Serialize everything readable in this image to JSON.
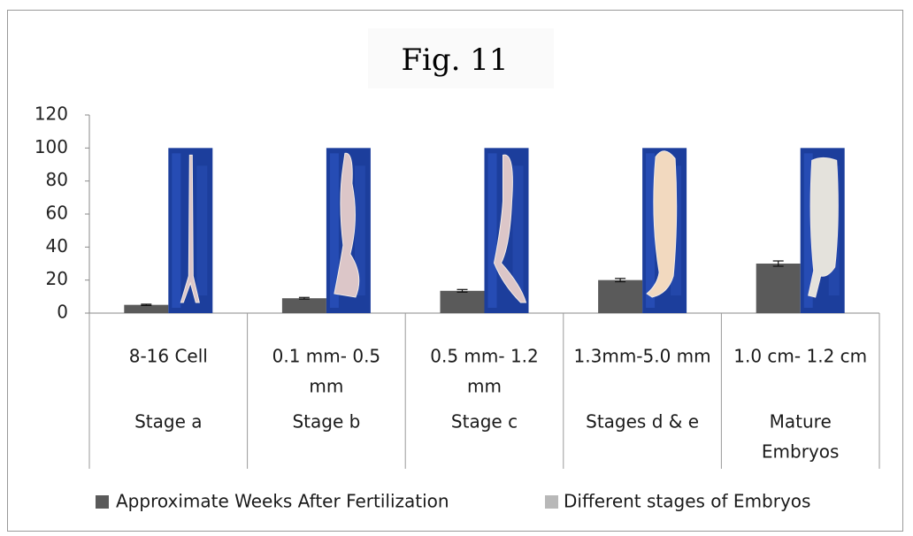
{
  "chart_data": {
    "type": "bar",
    "title": "Fig. 11",
    "ylim": [
      0,
      120
    ],
    "yticks": [
      0,
      20,
      40,
      60,
      80,
      100,
      120
    ],
    "grid": false,
    "legend_position": "bottom",
    "categories": [
      [
        "8-16 Cell"
      ],
      [
        "0.1 mm- 0.5",
        "mm"
      ],
      [
        "0.5 mm- 1.2",
        "mm"
      ],
      [
        "1.3mm-5.0 mm"
      ],
      [
        "1.0 cm- 1.2 cm"
      ]
    ],
    "groups": [
      [
        "Stage a"
      ],
      [
        "Stage b"
      ],
      [
        "Stage c"
      ],
      [
        "Stages  d & e"
      ],
      [
        "Mature",
        "Embryos"
      ]
    ],
    "series": [
      {
        "name": "Approximate Weeks After Fertilization",
        "color": "#5a5a5a",
        "values": [
          5,
          9,
          13.5,
          20,
          30
        ],
        "errors": [
          0.4,
          0.5,
          0.8,
          1.0,
          1.6
        ]
      },
      {
        "name": "Different stages of Embryos",
        "color": "#b8b8b8",
        "values": [
          100,
          100,
          100,
          100,
          100
        ]
      }
    ]
  }
}
